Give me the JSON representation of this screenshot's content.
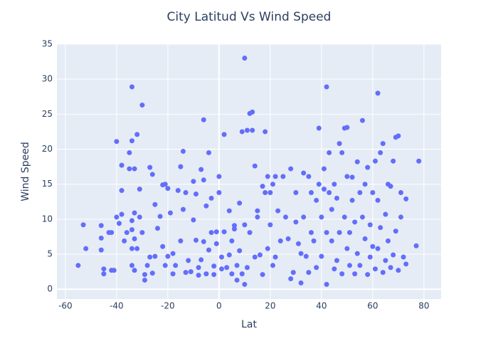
{
  "chart_data": {
    "type": "scatter",
    "title": "City Latitud Vs Wind Speed",
    "x_label": "Lat",
    "y_label": "Wind Speed",
    "color": "#636efa",
    "grid": true,
    "xlim": [
      -63.3,
      86.7
    ],
    "ylim": [
      -1.4,
      35
    ],
    "xticks": [
      -60,
      -40,
      -20,
      0,
      20,
      40,
      60,
      80
    ],
    "yticks": [
      0,
      5,
      10,
      15,
      20,
      25,
      30,
      35
    ],
    "x": [
      -55,
      -53,
      -52,
      -46,
      -46,
      -46,
      -45,
      -45,
      -43,
      -42,
      -42,
      -41,
      -40,
      -40,
      -39,
      -38,
      -38,
      -38,
      -37,
      -36,
      -35,
      -35,
      -34,
      -34,
      -34,
      -34,
      -34,
      -34,
      -33,
      -33,
      -33,
      -33,
      -32,
      -32,
      -31,
      -31,
      -30,
      -30,
      -29,
      -29,
      -28,
      -27,
      -27,
      -26,
      -26,
      -25,
      -25,
      -24,
      -23,
      -22,
      -22,
      -21,
      -21,
      -20,
      -20,
      -19,
      -18,
      -18,
      -17,
      -16,
      -15,
      -15,
      -14,
      -14,
      -13,
      -13,
      -12,
      -11,
      -10,
      -10,
      -9,
      -9,
      -8,
      -8,
      -7,
      -7,
      -6,
      -6,
      -6,
      -5,
      -5,
      -4,
      -4,
      -3,
      -3,
      -2,
      -2,
      -1,
      -1,
      0,
      0,
      1,
      1,
      2,
      2,
      3,
      4,
      4,
      5,
      5,
      6,
      6,
      7,
      7,
      8,
      8,
      9,
      9,
      10,
      10,
      10,
      11,
      11,
      12,
      12,
      13,
      13,
      14,
      14,
      15,
      15,
      16,
      17,
      17,
      18,
      18,
      19,
      19,
      20,
      20,
      21,
      21,
      22,
      22,
      23,
      24,
      25,
      26,
      27,
      28,
      28,
      29,
      30,
      30,
      31,
      32,
      32,
      33,
      33,
      34,
      35,
      35,
      36,
      36,
      37,
      38,
      38,
      39,
      39,
      40,
      40,
      41,
      41,
      42,
      42,
      42,
      43,
      43,
      44,
      44,
      45,
      45,
      46,
      46,
      47,
      47,
      48,
      48,
      49,
      49,
      50,
      50,
      50,
      51,
      51,
      52,
      52,
      53,
      53,
      54,
      54,
      55,
      55,
      56,
      56,
      57,
      57,
      58,
      58,
      59,
      59,
      60,
      60,
      61,
      61,
      62,
      62,
      62,
      63,
      63,
      64,
      64,
      65,
      65,
      66,
      66,
      67,
      67,
      68,
      68,
      69,
      69,
      70,
      70,
      71,
      71,
      72,
      73,
      73,
      77,
      78
    ],
    "values": [
      3.4,
      9.2,
      5.8,
      5.6,
      7.3,
      9.1,
      2.2,
      2.9,
      8.1,
      8.1,
      2.7,
      2.7,
      10.3,
      21.1,
      9.4,
      17.7,
      14.1,
      10.7,
      6.9,
      8.1,
      17.2,
      19.5,
      21.2,
      28.9,
      9.8,
      8.5,
      5.8,
      3.4,
      2.7,
      17.2,
      10.9,
      7.2,
      22.1,
      5.8,
      10.3,
      14.3,
      26.3,
      8.1,
      1.3,
      2.1,
      3.4,
      17.4,
      4.6,
      16.4,
      2.3,
      12.1,
      4.7,
      8.7,
      10.4,
      14.9,
      6.1,
      15.0,
      3.4,
      4.7,
      14.4,
      10.9,
      5.1,
      2.2,
      3.4,
      14.1,
      17.5,
      6.9,
      19.7,
      11.4,
      13.8,
      2.4,
      4.1,
      2.5,
      9.9,
      15.4,
      13.6,
      7.0,
      3.1,
      2.0,
      4.2,
      17.1,
      15.6,
      24.2,
      6.8,
      11.9,
      2.2,
      19.5,
      5.6,
      8.1,
      13.0,
      3.3,
      2.1,
      6.5,
      8.2,
      16.1,
      13.8,
      4.6,
      2.9,
      22.1,
      8.2,
      3.1,
      4.9,
      11.2,
      2.2,
      6.9,
      9.1,
      8.6,
      1.3,
      3.4,
      12.3,
      5.5,
      2.2,
      22.5,
      33.0,
      0.7,
      9.2,
      3.1,
      22.7,
      25.1,
      8.1,
      25.3,
      22.7,
      17.6,
      4.6,
      10.3,
      11.2,
      4.9,
      14.7,
      2.1,
      22.5,
      13.8,
      16.1,
      5.8,
      9.2,
      13.8,
      15.0,
      3.4,
      16.1,
      4.6,
      11.2,
      6.9,
      16.1,
      10.3,
      7.2,
      1.5,
      17.2,
      2.4,
      9.6,
      13.8,
      6.5,
      0.9,
      5.1,
      16.6,
      10.3,
      4.7,
      16.1,
      2.4,
      13.8,
      8.1,
      6.9,
      12.7,
      3.1,
      23.0,
      15.0,
      10.3,
      4.7,
      17.2,
      14.3,
      28.9,
      0.7,
      8.1,
      19.5,
      13.8,
      6.9,
      11.4,
      15.0,
      2.9,
      13.0,
      4.1,
      20.8,
      8.1,
      19.5,
      2.2,
      23.0,
      10.3,
      23.1,
      16.1,
      5.8,
      8.1,
      3.4,
      16.0,
      12.7,
      9.6,
      2.2,
      18.2,
      5.1,
      13.8,
      3.4,
      24.1,
      10.3,
      15.0,
      7.2,
      17.4,
      2.1,
      9.2,
      4.6,
      13.8,
      6.1,
      18.3,
      2.9,
      28.0,
      12.7,
      5.8,
      19.5,
      8.8,
      20.8,
      2.4,
      10.7,
      4.1,
      15.0,
      6.9,
      14.7,
      3.1,
      18.3,
      4.9,
      21.7,
      8.3,
      21.9,
      2.7,
      13.8,
      10.3,
      4.6,
      12.9,
      3.6,
      6.2,
      18.3
    ]
  }
}
